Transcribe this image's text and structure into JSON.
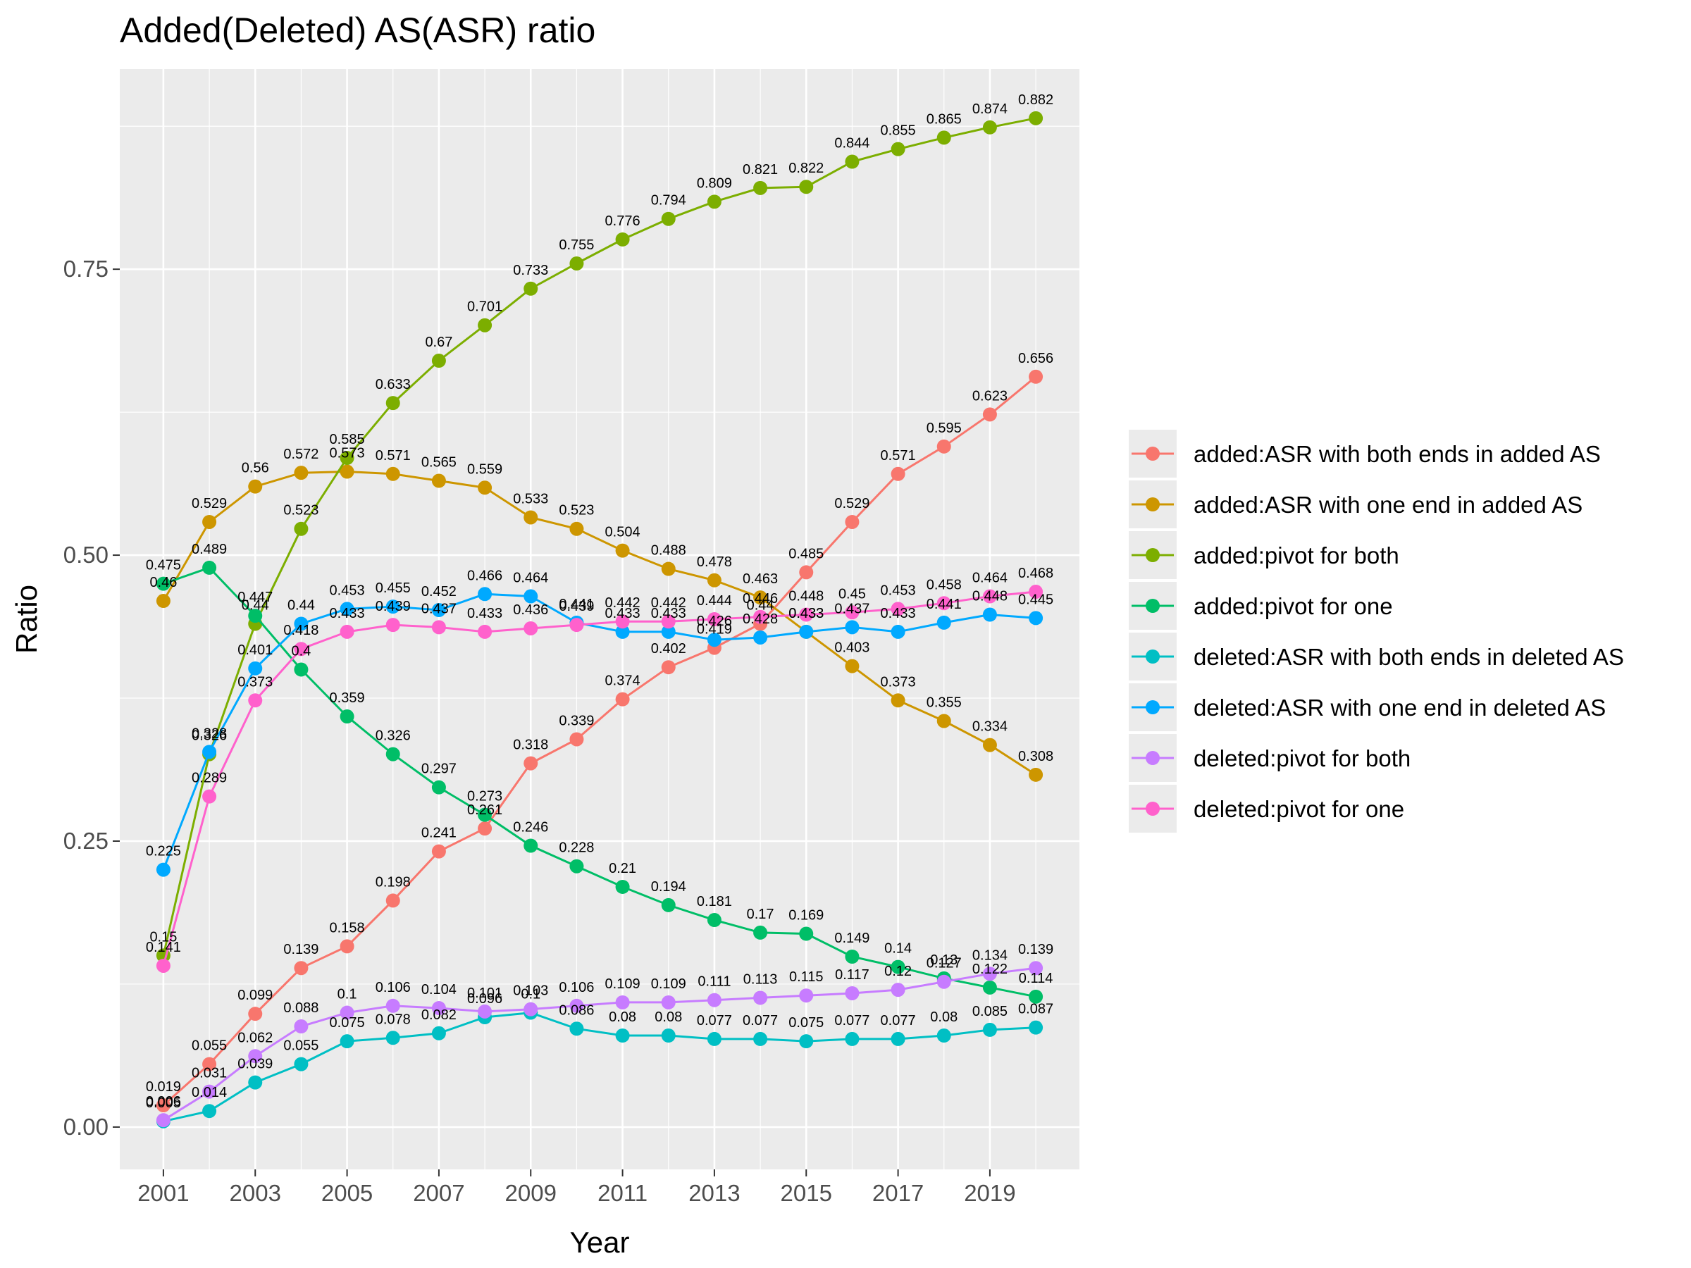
{
  "chart_data": {
    "type": "line",
    "title": "Added(Deleted) AS(ASR) ratio",
    "xlabel": "Year",
    "ylabel": "Ratio",
    "x": [
      2001,
      2002,
      2003,
      2004,
      2005,
      2006,
      2007,
      2008,
      2009,
      2010,
      2011,
      2012,
      2013,
      2014,
      2015,
      2016,
      2017,
      2018,
      2019,
      2020
    ],
    "x_ticks": [
      "2001",
      "2003",
      "2005",
      "2007",
      "2009",
      "2011",
      "2013",
      "2015",
      "2017",
      "2019"
    ],
    "y_ticks": [
      "0.00",
      "0.25",
      "0.50",
      "0.75"
    ],
    "xlim": [
      2000.05,
      2020.95
    ],
    "ylim": [
      -0.037,
      0.925
    ],
    "grid": true,
    "legend_position": "right",
    "series": [
      {
        "name": "added:ASR with both ends in added AS",
        "color": "#F8766D",
        "values": [
          0.019,
          0.055,
          0.099,
          0.139,
          0.158,
          0.198,
          0.241,
          0.261,
          0.318,
          0.339,
          0.374,
          0.402,
          0.419,
          0.44,
          0.485,
          0.529,
          0.571,
          0.595,
          0.623,
          0.656
        ]
      },
      {
        "name": "added:ASR with one end in added AS",
        "color": "#CD9600",
        "values": [
          0.46,
          0.529,
          0.56,
          0.572,
          0.573,
          0.571,
          0.565,
          0.559,
          0.533,
          0.523,
          0.504,
          0.488,
          0.478,
          0.463,
          0.433,
          0.403,
          0.373,
          0.355,
          0.334,
          0.308
        ]
      },
      {
        "name": "added:pivot for both",
        "color": "#7CAE00",
        "values": [
          0.15,
          0.326,
          0.44,
          0.523,
          0.585,
          0.633,
          0.67,
          0.701,
          0.733,
          0.755,
          0.776,
          0.794,
          0.809,
          0.821,
          0.822,
          0.844,
          0.855,
          0.865,
          0.874,
          0.882
        ]
      },
      {
        "name": "added:pivot for one",
        "color": "#00BE67",
        "values": [
          0.475,
          0.489,
          0.447,
          0.4,
          0.359,
          0.326,
          0.297,
          0.273,
          0.246,
          0.228,
          0.21,
          0.194,
          0.181,
          0.17,
          0.169,
          0.149,
          0.14,
          0.13,
          0.122,
          0.114
        ]
      },
      {
        "name": "deleted:ASR with both ends in deleted AS",
        "color": "#00BFC4",
        "values": [
          0.005,
          0.014,
          0.039,
          0.055,
          0.075,
          0.078,
          0.082,
          0.096,
          0.1,
          0.086,
          0.08,
          0.08,
          0.077,
          0.077,
          0.075,
          0.077,
          0.077,
          0.08,
          0.085,
          0.087
        ]
      },
      {
        "name": "deleted:ASR with one end in deleted AS",
        "color": "#00A9FF",
        "values": [
          0.225,
          0.328,
          0.401,
          0.44,
          0.453,
          0.455,
          0.452,
          0.466,
          0.464,
          0.441,
          0.433,
          0.433,
          0.426,
          0.428,
          0.433,
          0.437,
          0.433,
          0.441,
          0.448,
          0.445
        ]
      },
      {
        "name": "deleted:pivot for both",
        "color": "#C77CFF",
        "values": [
          0.006,
          0.031,
          0.062,
          0.088,
          0.1,
          0.106,
          0.104,
          0.101,
          0.103,
          0.106,
          0.109,
          0.109,
          0.111,
          0.113,
          0.115,
          0.117,
          0.12,
          0.127,
          0.134,
          0.139
        ]
      },
      {
        "name": "deleted:pivot for one",
        "color": "#FF61CC",
        "values": [
          0.141,
          0.289,
          0.373,
          0.418,
          0.433,
          0.439,
          0.437,
          0.433,
          0.436,
          0.439,
          0.442,
          0.442,
          0.444,
          0.446,
          0.448,
          0.45,
          0.453,
          0.458,
          0.464,
          0.468
        ]
      }
    ]
  }
}
